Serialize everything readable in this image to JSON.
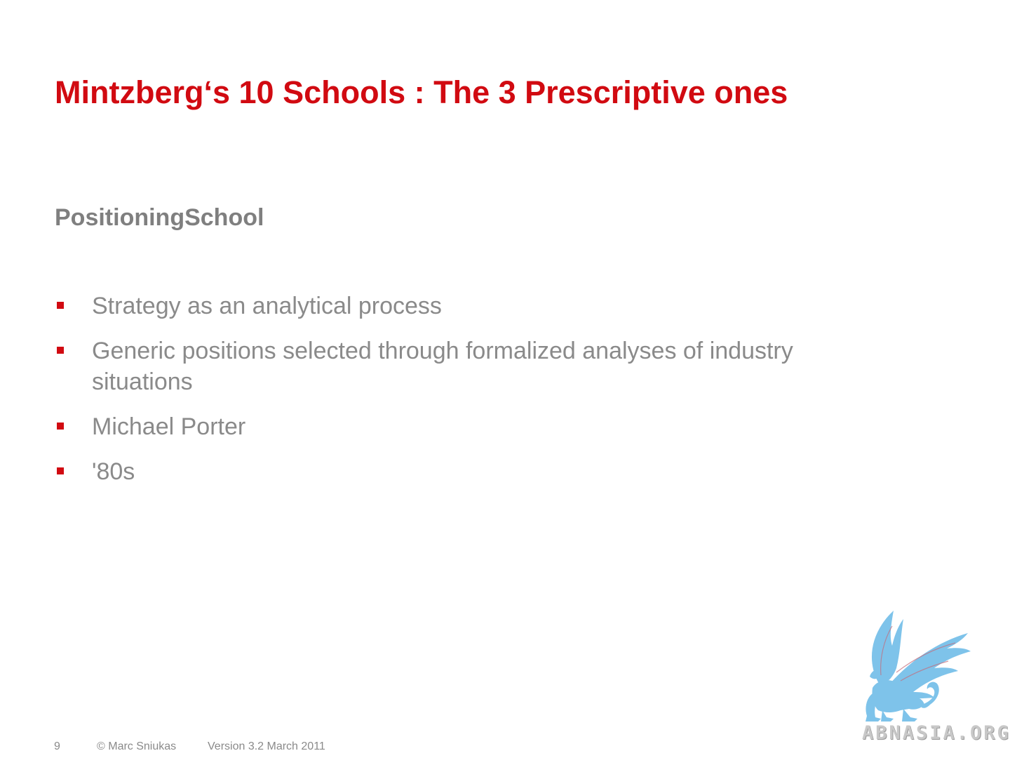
{
  "slide": {
    "title": "Mintzberg‘s 10 Schools : The 3 Prescriptive ones",
    "subtitle": "PositioningSchool",
    "bullets": [
      {
        "text": "Strategy as an analytical process"
      },
      {
        "text": "Generic positions selected through formalized analyses of industry situations"
      },
      {
        "text": "Michael Porter"
      },
      {
        "text": "'80s"
      }
    ]
  },
  "footer": {
    "page_number": "9",
    "copyright": "© Marc Sniukas",
    "version": "Version 3.2 March 2011"
  },
  "watermark": {
    "text": "ABNASIA.ORG",
    "icon": "griffin-logo-icon"
  },
  "colors": {
    "title": "#d10a11",
    "bullet_marker": "#d10a11",
    "body_text": "#8a8a8a",
    "logo": "#7ec3ea"
  }
}
